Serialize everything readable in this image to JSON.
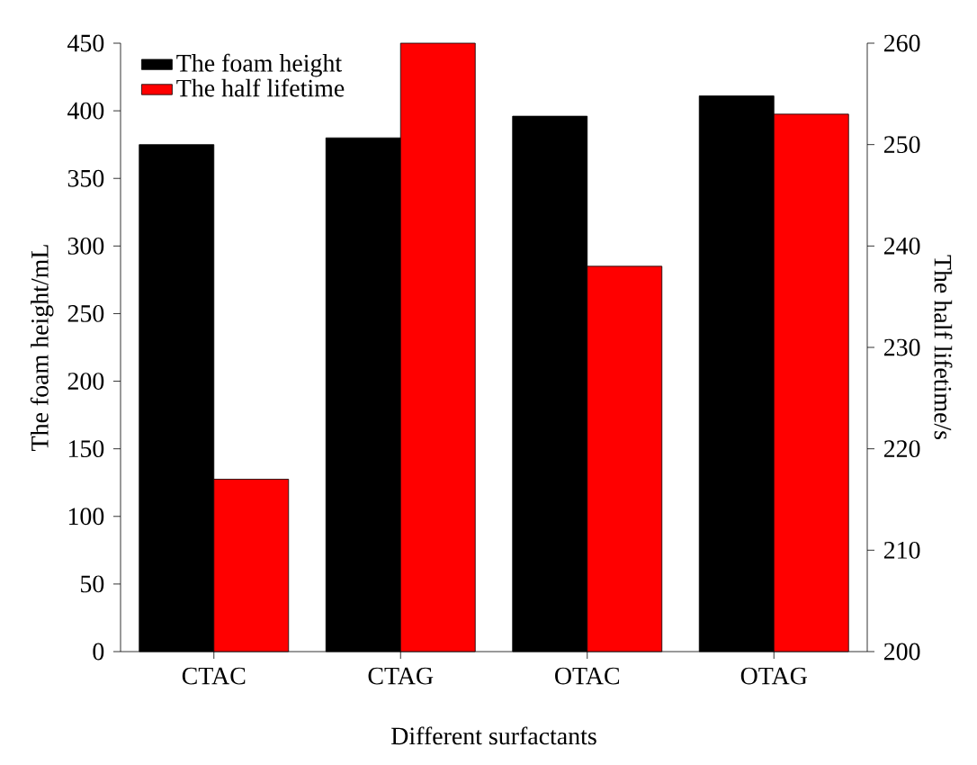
{
  "chart_data": {
    "type": "bar",
    "categories": [
      "CTAC",
      "CTAG",
      "OTAC",
      "OTAG"
    ],
    "series": [
      {
        "name": "The foam height",
        "color": "#000000",
        "values": [
          375,
          380,
          396,
          411
        ]
      },
      {
        "name": "The half lifetime",
        "color": "#ff0000",
        "values": [
          217,
          260,
          238,
          253
        ],
        "axis": "y2"
      }
    ],
    "xlabel": "Different surfactants",
    "ylabel": "The foam height/mL",
    "y2label": "The half lifetime/s",
    "ylim": [
      0,
      450
    ],
    "yticks": [
      0,
      50,
      100,
      150,
      200,
      250,
      300,
      350,
      400,
      450
    ],
    "y2lim": [
      200,
      260
    ],
    "y2ticks": [
      200,
      210,
      220,
      230,
      240,
      250,
      260
    ],
    "legend": "top left",
    "grid": false
  }
}
